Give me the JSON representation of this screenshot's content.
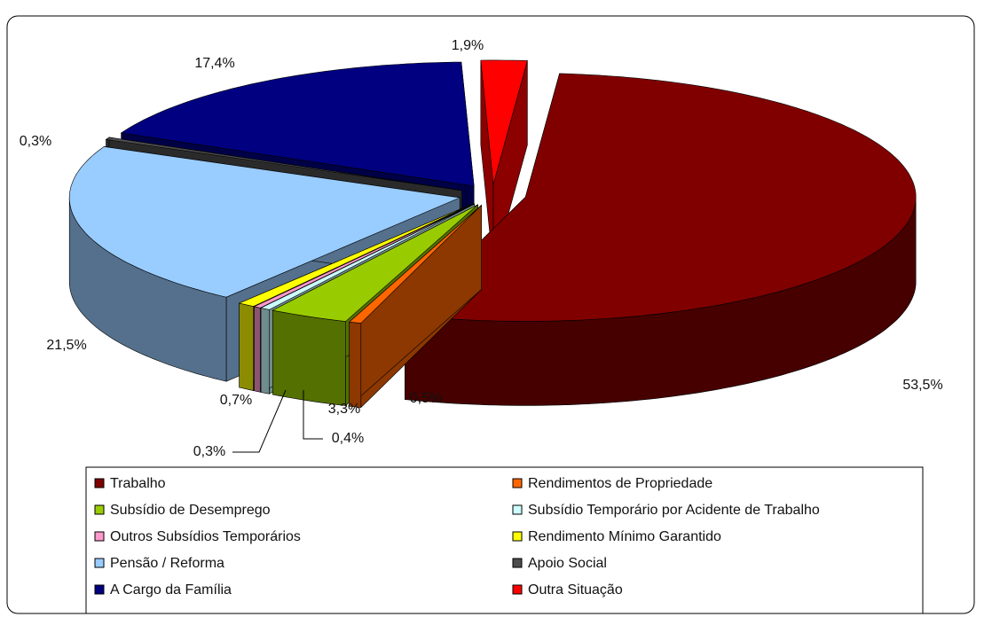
{
  "chart_data": {
    "type": "pie",
    "categories": [
      "Trabalho",
      "Rendimentos de Propriedade",
      "Subsídio de Desemprego",
      "Subsídio Temporário por Acidente de Trabalho",
      "Outros Subsídios Temporários",
      "Rendimento Mínimo Garantido",
      "Pensão / Reforma",
      "Apoio Social",
      "A Cargo da Família",
      "Outra Situação"
    ],
    "values": [
      53.5,
      0.5,
      3.3,
      0.4,
      0.3,
      0.7,
      21.5,
      0.3,
      17.4,
      1.9
    ],
    "value_labels": [
      "53,5%",
      "0,5%",
      "3,3%",
      "0,4%",
      "0,3%",
      "0,7%",
      "21,5%",
      "0,3%",
      "17,4%",
      "1,9%"
    ],
    "colors": [
      "#800000",
      "#ff6600",
      "#99cc00",
      "#ccffff",
      "#ff99cc",
      "#ffff00",
      "#99ccff",
      "#4d4d4d",
      "#000080",
      "#ff0000"
    ],
    "legend": "bottom"
  }
}
